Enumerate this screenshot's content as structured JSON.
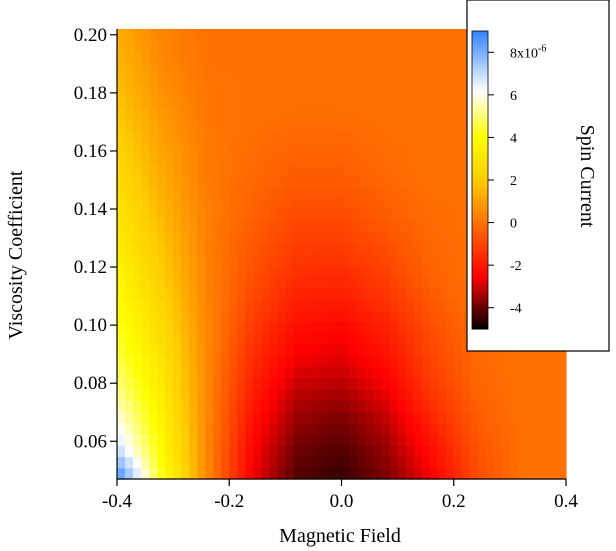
{
  "chart_data": {
    "type": "heatmap",
    "title": "",
    "xlabel": "Magnetic Field",
    "ylabel": "Viscosity Coefficient",
    "xlim": [
      -0.4,
      0.4
    ],
    "ylim": [
      0.047,
      0.202
    ],
    "x_ticks": [
      "-0.4",
      "-0.2",
      "0.0",
      "0.2",
      "0.4"
    ],
    "x_tick_values": [
      -0.4,
      -0.2,
      0.0,
      0.2,
      0.4
    ],
    "y_ticks": [
      "0.20",
      "0.18",
      "0.16",
      "0.14",
      "0.12",
      "0.10",
      "0.08",
      "0.06"
    ],
    "y_tick_values": [
      0.2,
      0.18,
      0.16,
      0.14,
      0.12,
      0.1,
      0.08,
      0.06
    ],
    "x_grid_range": [
      -0.4,
      0.4
    ],
    "y_grid_range": [
      0.047,
      0.202
    ],
    "z_rows_low_to_high_viscosity": [
      [
        9.0,
        4.2,
        0.5,
        -2.6,
        -4.2,
        -4.5,
        -3.8,
        -2.6,
        -0.9,
        0.0,
        0.0
      ],
      [
        7.0,
        3.8,
        0.5,
        -2.4,
        -3.9,
        -4.2,
        -3.5,
        -2.2,
        -0.7,
        0.0,
        0.0
      ],
      [
        6.0,
        3.5,
        0.5,
        -2.1,
        -3.5,
        -3.8,
        -3.1,
        -1.7,
        -0.5,
        0.0,
        0.0
      ],
      [
        5.2,
        3.2,
        0.5,
        -1.8,
        -3.1,
        -3.3,
        -2.6,
        -1.3,
        -0.3,
        0.0,
        0.0
      ],
      [
        4.7,
        2.9,
        0.5,
        -1.5,
        -2.6,
        -2.8,
        -2.2,
        -1.0,
        -0.2,
        0.0,
        0.0
      ],
      [
        4.3,
        2.6,
        0.5,
        -1.2,
        -2.2,
        -2.4,
        -1.8,
        -0.8,
        -0.1,
        0.0,
        0.0
      ],
      [
        3.9,
        2.3,
        0.4,
        -0.9,
        -1.8,
        -1.9,
        -1.4,
        -0.5,
        0.0,
        0.0,
        0.0
      ],
      [
        3.6,
        2.0,
        0.4,
        -0.7,
        -1.4,
        -1.5,
        -1.0,
        -0.3,
        0.0,
        0.0,
        0.0
      ],
      [
        3.2,
        1.8,
        0.3,
        -0.5,
        -1.1,
        -1.1,
        -0.7,
        -0.2,
        0.0,
        0.0,
        0.0
      ],
      [
        2.9,
        1.5,
        0.3,
        -0.3,
        -0.8,
        -0.8,
        -0.4,
        -0.1,
        0.0,
        0.0,
        0.0
      ],
      [
        2.6,
        1.3,
        0.2,
        -0.2,
        -0.5,
        -0.5,
        -0.2,
        0.0,
        0.0,
        0.0,
        0.0
      ],
      [
        2.3,
        1.1,
        0.2,
        -0.1,
        -0.3,
        -0.3,
        -0.1,
        0.0,
        0.0,
        0.0,
        0.0
      ],
      [
        2.0,
        0.9,
        0.1,
        0.0,
        -0.1,
        -0.1,
        0.0,
        0.0,
        0.0,
        0.0,
        0.0
      ],
      [
        1.7,
        0.7,
        0.1,
        0.0,
        0.0,
        0.0,
        0.0,
        0.0,
        0.0,
        0.0,
        0.0
      ],
      [
        1.5,
        0.5,
        0.0,
        0.0,
        0.0,
        0.0,
        0.0,
        0.0,
        0.0,
        0.0,
        0.0
      ],
      [
        1.3,
        0.4,
        0.0,
        0.0,
        0.0,
        0.0,
        0.0,
        0.0,
        0.0,
        0.0,
        0.0
      ]
    ],
    "z_scale_factor": "x10^-6",
    "colorbar": {
      "title": "Spin Current",
      "range": [
        -5.0,
        9.0
      ],
      "tick_values": [
        8,
        6,
        4,
        2,
        0,
        -2,
        -4
      ],
      "ticks": [
        "8x10",
        "6",
        "4",
        "2",
        "0",
        "-2",
        "-4"
      ],
      "top_tick_exponent": "-6",
      "colorscale": [
        [
          -5.0,
          "#000000"
        ],
        [
          -2.5,
          "#ff0000"
        ],
        [
          2.0,
          "#ffcc00"
        ],
        [
          4.0,
          "#ffff00"
        ],
        [
          6.2,
          "#ffffff"
        ],
        [
          9.0,
          "#3385ff"
        ]
      ]
    }
  }
}
